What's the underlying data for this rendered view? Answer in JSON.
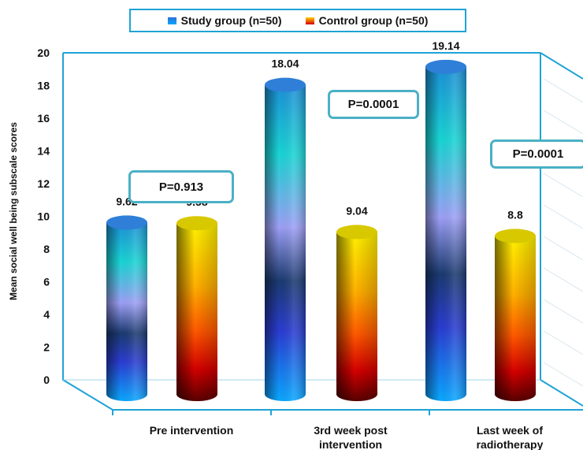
{
  "chart_data": {
    "type": "bar",
    "title": "",
    "xlabel": "",
    "ylabel": "Mean social well being subscale scores",
    "ylim": [
      0,
      20
    ],
    "yticks": [
      0,
      2,
      4,
      6,
      8,
      10,
      12,
      14,
      16,
      18,
      20
    ],
    "categories": [
      "Pre intervention",
      "3rd week post intervention",
      "Last week of radiotherapy"
    ],
    "category_lines": [
      [
        "Pre intervention"
      ],
      [
        "3rd week post",
        "intervention"
      ],
      [
        "Last week of",
        "radiotherapy"
      ]
    ],
    "series": [
      {
        "name": "Study group (n=50)",
        "values": [
          9.62,
          18.04,
          19.14
        ],
        "labels": [
          "9.62",
          "18.04",
          "19.14"
        ],
        "color": "#1e6fd9"
      },
      {
        "name": "Control group (n=50)",
        "values": [
          9.58,
          9.04,
          8.8
        ],
        "labels": [
          "9.58",
          "9.04",
          "8.8"
        ],
        "color": "#e8a000"
      }
    ],
    "annotations": [
      "P=0.913",
      "P=0.0001",
      "P=0.0001"
    ],
    "legend_position": "top",
    "grid": false
  }
}
